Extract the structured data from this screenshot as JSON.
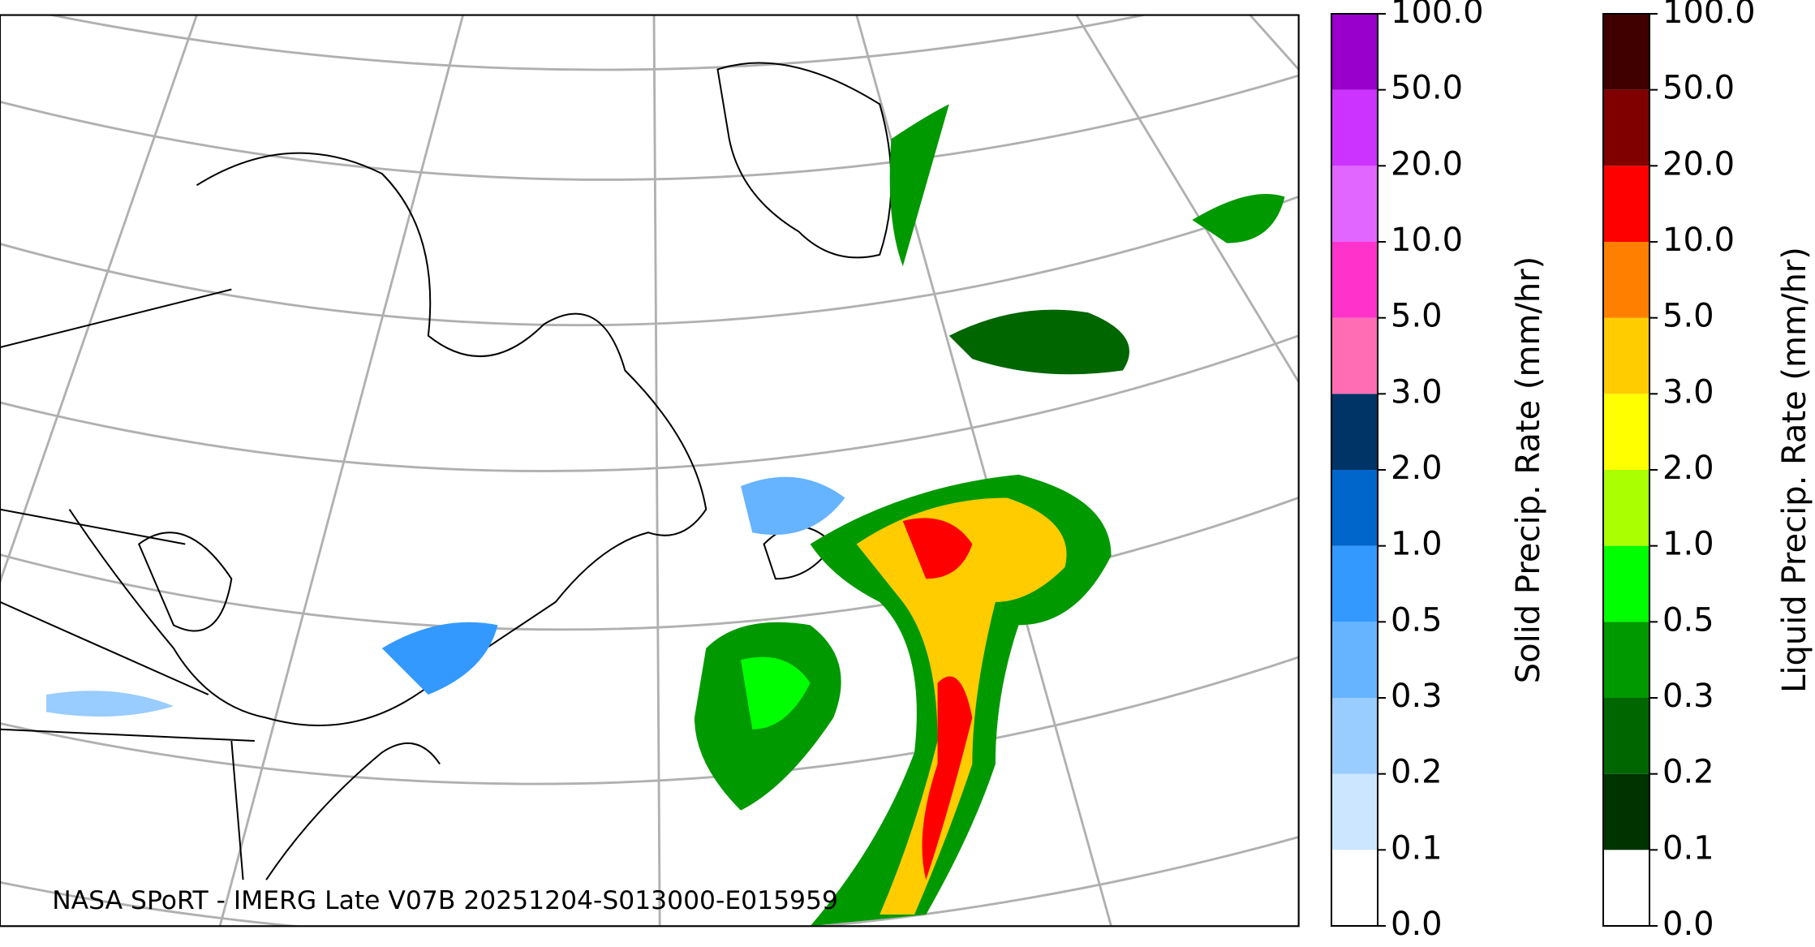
{
  "map": {
    "credit": "NASA SPoRT - IMERG Late V07B 20251204-S013000-E015959"
  },
  "colorbars": [
    {
      "label": "Solid Precip. Rate (mm/hr)",
      "ticks": [
        {
          "value": 0,
          "label": "0.0"
        },
        {
          "value": 0.1,
          "label": "0.1"
        },
        {
          "value": 0.2,
          "label": "0.2"
        },
        {
          "value": 0.3,
          "label": "0.3"
        },
        {
          "value": 0.5,
          "label": "0.5"
        },
        {
          "value": 1,
          "label": "1.0"
        },
        {
          "value": 2,
          "label": "2.0"
        },
        {
          "value": 3,
          "label": "3.0"
        },
        {
          "value": 5,
          "label": "5.0"
        },
        {
          "value": 10,
          "label": "10.0"
        },
        {
          "value": 20,
          "label": "20.0"
        },
        {
          "value": 50,
          "label": "50.0"
        },
        {
          "value": 100,
          "label": "100.0"
        }
      ],
      "colors": [
        "#ffffff",
        "#cce6ff",
        "#99ccff",
        "#66b3ff",
        "#3399ff",
        "#0066cc",
        "#003366",
        "#ff6eb4",
        "#ff33cc",
        "#e066ff",
        "#cc33ff",
        "#9900cc"
      ]
    },
    {
      "label": "Liquid Precip. Rate (mm/hr)",
      "ticks": [
        {
          "value": 0,
          "label": "0.0"
        },
        {
          "value": 0.1,
          "label": "0.1"
        },
        {
          "value": 0.2,
          "label": "0.2"
        },
        {
          "value": 0.3,
          "label": "0.3"
        },
        {
          "value": 0.5,
          "label": "0.5"
        },
        {
          "value": 1,
          "label": "1.0"
        },
        {
          "value": 2,
          "label": "2.0"
        },
        {
          "value": 3,
          "label": "3.0"
        },
        {
          "value": 5,
          "label": "5.0"
        },
        {
          "value": 10,
          "label": "10.0"
        },
        {
          "value": 20,
          "label": "20.0"
        },
        {
          "value": 50,
          "label": "50.0"
        },
        {
          "value": 100,
          "label": "100.0"
        }
      ],
      "colors": [
        "#ffffff",
        "#003300",
        "#006600",
        "#009900",
        "#00ff00",
        "#aaff00",
        "#ffff00",
        "#ffcc00",
        "#ff8000",
        "#ff0000",
        "#800000",
        "#400000"
      ]
    }
  ]
}
